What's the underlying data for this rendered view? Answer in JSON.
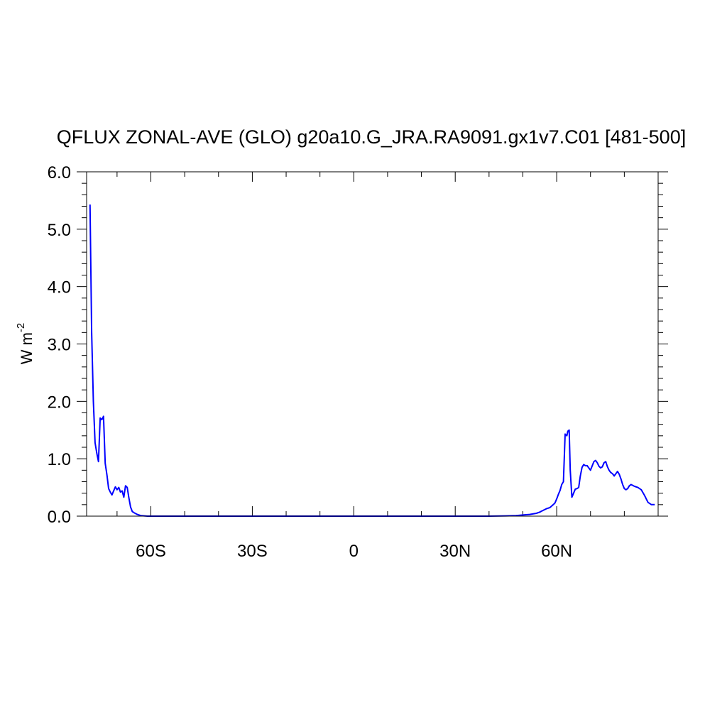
{
  "chart_data": {
    "type": "line",
    "title": "QFLUX ZONAL-AVE (GLO) g20a10.G_JRA.RA9091.gx1v7.C01 [481-500]",
    "xlabel": "",
    "ylabel": {
      "base": "W m",
      "exponent": "-2"
    },
    "xlim": [
      -79,
      90
    ],
    "ylim": [
      0,
      6
    ],
    "xticks": [
      {
        "value": -60,
        "label": "60S"
      },
      {
        "value": -30,
        "label": "30S"
      },
      {
        "value": 0,
        "label": "0"
      },
      {
        "value": 30,
        "label": "30N"
      },
      {
        "value": 60,
        "label": "60N"
      }
    ],
    "yticks": [
      {
        "value": 0,
        "label": "0.0"
      },
      {
        "value": 1,
        "label": "1.0"
      },
      {
        "value": 2,
        "label": "2.0"
      },
      {
        "value": 3,
        "label": "3.0"
      },
      {
        "value": 4,
        "label": "4.0"
      },
      {
        "value": 5,
        "label": "5.0"
      },
      {
        "value": 6,
        "label": "6.0"
      }
    ],
    "grid": false,
    "line_color": "#0000ff",
    "series": [
      {
        "x": [
          -78,
          -77.5,
          -77,
          -76.5,
          -76,
          -75.5,
          -75,
          -74.5,
          -74,
          -73.5,
          -73,
          -72.5,
          -72,
          -71.5,
          -71,
          -70.5,
          -70,
          -69.5,
          -69,
          -68.5,
          -68,
          -67.5,
          -67,
          -66.5,
          -66,
          -65.5,
          -65,
          -64,
          -63,
          -62,
          -61,
          -60,
          -58,
          -55,
          -50,
          -40,
          -30,
          -20,
          -10,
          0,
          10,
          20,
          30,
          40,
          45,
          48,
          50,
          52,
          54,
          55,
          56,
          57,
          58,
          59,
          59.5,
          60,
          60.5,
          61,
          61.5,
          62,
          62.5,
          63,
          63.3,
          63.7,
          64,
          64.5,
          65,
          65.5,
          66,
          66.5,
          67,
          67.5,
          68,
          68.5,
          69,
          70,
          71,
          71.5,
          72,
          72.5,
          73,
          73.5,
          74,
          74.5,
          75,
          75.5,
          76,
          76.5,
          77,
          77.5,
          78,
          78.5,
          79,
          79.5,
          80,
          80.5,
          81,
          81.5,
          82,
          83,
          84,
          85,
          86,
          87,
          88,
          89
        ],
        "y": [
          5.43,
          3.2,
          2.0,
          1.28,
          1.1,
          0.95,
          1.71,
          1.68,
          1.74,
          0.92,
          0.72,
          0.48,
          0.42,
          0.37,
          0.44,
          0.51,
          0.46,
          0.5,
          0.42,
          0.44,
          0.33,
          0.53,
          0.5,
          0.32,
          0.16,
          0.08,
          0.06,
          0.03,
          0.01,
          0.005,
          0.0,
          0.0,
          0.0,
          0.0,
          0.0,
          0.0,
          0.0,
          0.0,
          0.0,
          0.0,
          0.0,
          0.0,
          0.0,
          0.0,
          0.005,
          0.01,
          0.02,
          0.03,
          0.05,
          0.07,
          0.1,
          0.13,
          0.15,
          0.2,
          0.23,
          0.3,
          0.38,
          0.45,
          0.55,
          0.6,
          1.43,
          1.4,
          1.48,
          1.5,
          0.8,
          0.33,
          0.4,
          0.47,
          0.48,
          0.5,
          0.7,
          0.85,
          0.9,
          0.88,
          0.88,
          0.8,
          0.95,
          0.97,
          0.93,
          0.87,
          0.84,
          0.86,
          0.93,
          0.95,
          0.86,
          0.8,
          0.76,
          0.74,
          0.7,
          0.74,
          0.78,
          0.73,
          0.65,
          0.55,
          0.48,
          0.46,
          0.48,
          0.53,
          0.55,
          0.52,
          0.5,
          0.46,
          0.36,
          0.24,
          0.2,
          0.2
        ]
      }
    ]
  }
}
